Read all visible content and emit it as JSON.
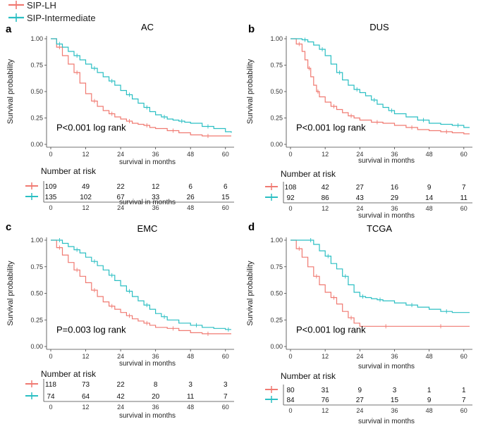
{
  "legend": {
    "entries": [
      {
        "name": "SIP-LH",
        "color": "#F07A72"
      },
      {
        "name": "SIP-Intermediate",
        "color": "#2BBFC3"
      }
    ]
  },
  "chart_data": [
    {
      "panel": "a",
      "type": "line",
      "title": "AC",
      "xlabel": "survival in months",
      "ylabel": "Survival probability",
      "xlim": [
        0,
        62
      ],
      "ylim": [
        0,
        1
      ],
      "xticks": [
        "0",
        "12",
        "24",
        "36",
        "48",
        "60"
      ],
      "yticks": [
        "0.00",
        "0.25",
        "0.50",
        "0.75",
        "1.00"
      ],
      "annotation": "P<0.001 log rank",
      "risk_table": {
        "header": "Number at risk",
        "xlabel": "survival in months",
        "rows": [
          {
            "group": "SIP-LH",
            "values": [
              "109",
              "49",
              "22",
              "12",
              "6",
              "6"
            ]
          },
          {
            "group": "SIP-Intermediate",
            "values": [
              "135",
              "102",
              "67",
              "33",
              "26",
              "15"
            ]
          }
        ]
      },
      "series": [
        {
          "name": "SIP-LH",
          "x": [
            0,
            2,
            4,
            6,
            8,
            10,
            12,
            14,
            16,
            18,
            20,
            22,
            24,
            26,
            28,
            30,
            32,
            34,
            36,
            40,
            44,
            48,
            52,
            56,
            62
          ],
          "y": [
            1.0,
            0.92,
            0.84,
            0.76,
            0.68,
            0.58,
            0.48,
            0.41,
            0.36,
            0.32,
            0.29,
            0.26,
            0.24,
            0.22,
            0.2,
            0.19,
            0.18,
            0.16,
            0.15,
            0.13,
            0.11,
            0.09,
            0.08,
            0.08,
            0.08
          ]
        },
        {
          "name": "SIP-Intermediate",
          "x": [
            0,
            2,
            4,
            6,
            8,
            10,
            12,
            14,
            16,
            18,
            20,
            22,
            24,
            26,
            28,
            30,
            32,
            34,
            36,
            38,
            40,
            42,
            44,
            46,
            48,
            52,
            56,
            60,
            62
          ],
          "y": [
            1.0,
            0.95,
            0.92,
            0.88,
            0.84,
            0.8,
            0.76,
            0.72,
            0.68,
            0.64,
            0.6,
            0.56,
            0.51,
            0.47,
            0.43,
            0.39,
            0.35,
            0.31,
            0.28,
            0.26,
            0.24,
            0.23,
            0.22,
            0.21,
            0.2,
            0.17,
            0.15,
            0.12,
            0.11
          ]
        }
      ]
    },
    {
      "panel": "b",
      "type": "line",
      "title": "DUS",
      "xlabel": "survival in months",
      "ylabel": "Survival probability",
      "xlim": [
        0,
        62
      ],
      "ylim": [
        0,
        1
      ],
      "xticks": [
        "0",
        "12",
        "24",
        "36",
        "48",
        "60"
      ],
      "yticks": [
        "0.00",
        "0.25",
        "0.50",
        "0.75",
        "1.00"
      ],
      "annotation": "P<0.001 log rank",
      "risk_table": {
        "header": "Number at risk",
        "xlabel": "survival in months",
        "rows": [
          {
            "group": "SIP-LH",
            "values": [
              "108",
              "42",
              "27",
              "16",
              "9",
              "7"
            ]
          },
          {
            "group": "SIP-Intermediate",
            "values": [
              "92",
              "86",
              "43",
              "29",
              "14",
              "11"
            ]
          }
        ]
      },
      "series": [
        {
          "name": "SIP-LH",
          "x": [
            0,
            2,
            4,
            5,
            6,
            7,
            8,
            9,
            10,
            12,
            14,
            16,
            18,
            20,
            22,
            24,
            28,
            32,
            36,
            40,
            44,
            48,
            52,
            56,
            60,
            62
          ],
          "y": [
            1.0,
            0.95,
            0.88,
            0.8,
            0.72,
            0.64,
            0.56,
            0.5,
            0.45,
            0.4,
            0.36,
            0.33,
            0.3,
            0.27,
            0.25,
            0.23,
            0.21,
            0.2,
            0.18,
            0.16,
            0.14,
            0.13,
            0.12,
            0.11,
            0.1,
            0.1
          ]
        },
        {
          "name": "SIP-Intermediate",
          "x": [
            0,
            4,
            6,
            8,
            10,
            12,
            14,
            16,
            18,
            20,
            22,
            24,
            26,
            28,
            30,
            32,
            34,
            36,
            40,
            44,
            48,
            52,
            56,
            60,
            62
          ],
          "y": [
            1.0,
            0.99,
            0.97,
            0.94,
            0.9,
            0.84,
            0.76,
            0.68,
            0.61,
            0.56,
            0.52,
            0.49,
            0.46,
            0.42,
            0.38,
            0.35,
            0.32,
            0.29,
            0.26,
            0.23,
            0.2,
            0.19,
            0.18,
            0.16,
            0.16
          ]
        }
      ]
    },
    {
      "panel": "c",
      "type": "line",
      "title": "EMC",
      "xlabel": "survival in months",
      "ylabel": "Survival probability",
      "xlim": [
        0,
        62
      ],
      "ylim": [
        0,
        1
      ],
      "xticks": [
        "0",
        "12",
        "24",
        "36",
        "48",
        "60"
      ],
      "yticks": [
        "0.00",
        "0.25",
        "0.50",
        "0.75",
        "1.00"
      ],
      "annotation": "P=0.003 log rank",
      "risk_table": {
        "header": "Number at risk",
        "xlabel": "survival in months",
        "rows": [
          {
            "group": "SIP-LH",
            "values": [
              "118",
              "73",
              "22",
              "8",
              "3",
              "3"
            ]
          },
          {
            "group": "SIP-Intermediate",
            "values": [
              "74",
              "64",
              "42",
              "20",
              "11",
              "7"
            ]
          }
        ]
      },
      "series": [
        {
          "name": "SIP-LH",
          "x": [
            0,
            2,
            4,
            6,
            8,
            10,
            12,
            14,
            16,
            18,
            20,
            22,
            24,
            26,
            28,
            30,
            32,
            34,
            36,
            40,
            44,
            48,
            52,
            56,
            62
          ],
          "y": [
            1.0,
            0.93,
            0.86,
            0.79,
            0.72,
            0.66,
            0.6,
            0.53,
            0.47,
            0.42,
            0.38,
            0.35,
            0.32,
            0.29,
            0.26,
            0.24,
            0.22,
            0.2,
            0.18,
            0.17,
            0.15,
            0.13,
            0.12,
            0.12,
            0.12
          ]
        },
        {
          "name": "SIP-Intermediate",
          "x": [
            0,
            2,
            4,
            6,
            8,
            10,
            12,
            14,
            16,
            18,
            20,
            22,
            24,
            26,
            28,
            30,
            32,
            34,
            36,
            38,
            40,
            44,
            48,
            52,
            56,
            60,
            62
          ],
          "y": [
            1.0,
            1.0,
            0.97,
            0.94,
            0.91,
            0.88,
            0.84,
            0.8,
            0.76,
            0.72,
            0.67,
            0.62,
            0.57,
            0.52,
            0.47,
            0.43,
            0.39,
            0.35,
            0.31,
            0.28,
            0.25,
            0.22,
            0.2,
            0.18,
            0.17,
            0.16,
            0.16
          ]
        }
      ]
    },
    {
      "panel": "d",
      "type": "line",
      "title": "TCGA",
      "xlabel": "survival in months",
      "ylabel": "Survival probability",
      "xlim": [
        0,
        62
      ],
      "ylim": [
        0,
        1
      ],
      "xticks": [
        "0",
        "12",
        "24",
        "36",
        "48",
        "60"
      ],
      "yticks": [
        "0.00",
        "0.25",
        "0.50",
        "0.75",
        "1.00"
      ],
      "annotation": "P<0.001 log rank",
      "risk_table": {
        "header": "Number at risk",
        "xlabel": "survival in months",
        "rows": [
          {
            "group": "SIP-LH",
            "values": [
              "80",
              "31",
              "9",
              "3",
              "1",
              "1"
            ]
          },
          {
            "group": "SIP-Intermediate",
            "values": [
              "84",
              "76",
              "27",
              "15",
              "9",
              "7"
            ]
          }
        ]
      },
      "series": [
        {
          "name": "SIP-LH",
          "x": [
            0,
            2,
            4,
            6,
            8,
            10,
            12,
            14,
            16,
            18,
            20,
            22,
            24,
            30,
            36,
            40,
            48,
            56,
            62
          ],
          "y": [
            1.0,
            0.92,
            0.84,
            0.75,
            0.66,
            0.58,
            0.51,
            0.46,
            0.4,
            0.33,
            0.27,
            0.22,
            0.19,
            0.19,
            0.19,
            0.19,
            0.19,
            0.19,
            0.19
          ]
        },
        {
          "name": "SIP-Intermediate",
          "x": [
            0,
            6,
            8,
            10,
            12,
            14,
            16,
            18,
            20,
            22,
            24,
            26,
            28,
            30,
            32,
            36,
            40,
            44,
            48,
            52,
            56,
            60,
            62
          ],
          "y": [
            1.0,
            1.0,
            0.96,
            0.9,
            0.85,
            0.78,
            0.73,
            0.66,
            0.58,
            0.51,
            0.47,
            0.46,
            0.45,
            0.44,
            0.43,
            0.41,
            0.39,
            0.37,
            0.35,
            0.33,
            0.32,
            0.32,
            0.32
          ]
        }
      ]
    }
  ]
}
